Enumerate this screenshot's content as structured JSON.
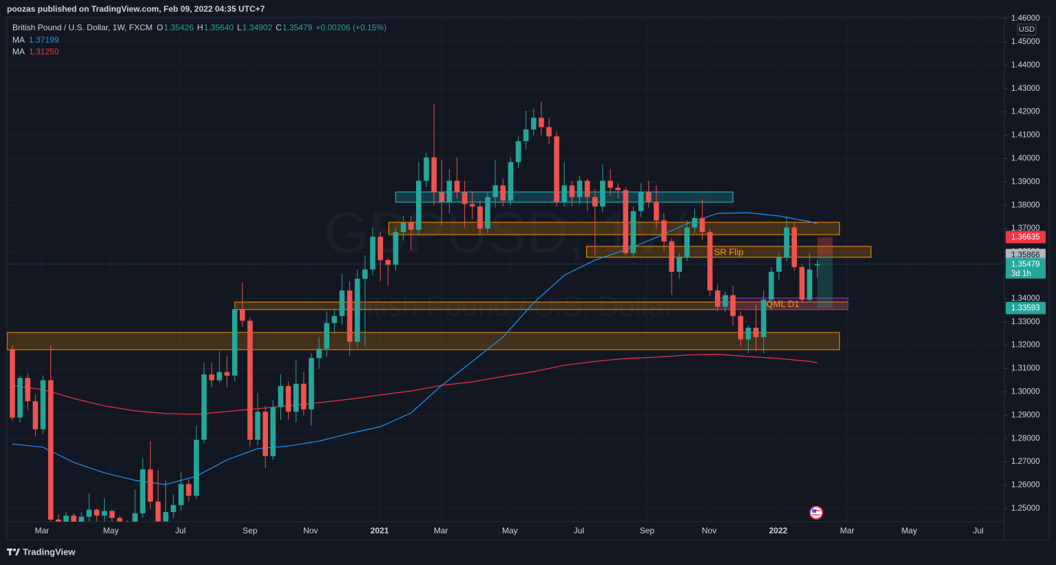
{
  "header": {
    "published": "poozas published on TradingView.com, Feb 09, 2022 04:35 UTC+7"
  },
  "chart_data": {
    "type": "candlestick",
    "symbol": "British Pound / U.S. Dollar, 1W, FXCM",
    "ohlc_legend": [
      {
        "key": "O",
        "value": "1.35426"
      },
      {
        "key": "H",
        "value": "1.35640"
      },
      {
        "key": "L",
        "value": "1.34902"
      },
      {
        "key": "C",
        "value": "1.35479"
      }
    ],
    "change": "+0.00206 (+0.15%)",
    "watermark": "GBPUSD, 1W",
    "watermark_sub": "British Pound / U.S. Dollar",
    "currency": "USD",
    "up_color": "#26a69a",
    "down_color": "#ef5350",
    "x": [
      0,
      1,
      2,
      3,
      4,
      5,
      6,
      7,
      8,
      9,
      10,
      11,
      12,
      13,
      14,
      15,
      16,
      17,
      18,
      19,
      20,
      21,
      22,
      23,
      24,
      25,
      26,
      27,
      28,
      29,
      30,
      31,
      32,
      33,
      34,
      35,
      36,
      37,
      38,
      39,
      40,
      41,
      42,
      43,
      44,
      45,
      46,
      47,
      48,
      49,
      50,
      51,
      52,
      53,
      54,
      55,
      56,
      57,
      58,
      59,
      60,
      61,
      62,
      63,
      64,
      65,
      66,
      67,
      68,
      69,
      70,
      71,
      72,
      73,
      74,
      75,
      76,
      77,
      78,
      79,
      80,
      81,
      82,
      83,
      84,
      85,
      86,
      87,
      88,
      89,
      90,
      91,
      92,
      93,
      94,
      95,
      96,
      97,
      98,
      99,
      100,
      101,
      102,
      103,
      104,
      105
    ],
    "open": [
      1.318,
      1.289,
      1.306,
      1.296,
      1.284,
      1.305,
      1.2453,
      1.24,
      1.247,
      1.243,
      1.2465,
      1.2495,
      1.247,
      1.249,
      1.246,
      1.238,
      1.244,
      1.248,
      1.2668,
      1.253,
      1.2445,
      1.2485,
      1.2515,
      1.2605,
      1.2555,
      1.2795,
      1.3075,
      1.305,
      1.3085,
      1.307,
      1.3355,
      1.3305,
      1.2795,
      1.2915,
      1.2725,
      1.2935,
      1.3025,
      1.2915,
      1.3035,
      1.2925,
      1.3145,
      1.3185,
      1.3295,
      1.3325,
      1.3435,
      1.3215,
      1.3485,
      1.3525,
      1.3665,
      1.3565,
      1.3545,
      1.3685,
      1.3725,
      1.3695,
      1.3905,
      1.4005,
      1.3855,
      1.3815,
      1.3905,
      1.3855,
      1.3805,
      1.3795,
      1.37,
      1.3835,
      1.3885,
      1.382,
      1.3985,
      1.4075,
      1.4125,
      1.4175,
      1.4135,
      1.4095,
      1.3815,
      1.3885,
      1.3835,
      1.3905,
      1.3835,
      1.3795,
      1.3905,
      1.3875,
      1.3865,
      1.3595,
      1.3775,
      1.3855,
      1.3815,
      1.3735,
      1.3645,
      1.3515,
      1.3575,
      1.3705,
      1.3745,
      1.3685,
      1.3435,
      1.3365,
      1.3415,
      1.3325,
      1.3225,
      1.3275,
      1.3235,
      1.3395,
      1.3515,
      1.3575,
      1.3705,
      1.3535,
      1.3395,
      1.35426
    ],
    "high": [
      1.32,
      1.307,
      1.308,
      1.299,
      1.307,
      1.32,
      1.2475,
      1.2485,
      1.248,
      1.2485,
      1.2565,
      1.25,
      1.2545,
      1.2495,
      1.247,
      1.245,
      1.258,
      1.2715,
      1.279,
      1.2665,
      1.262,
      1.256,
      1.2655,
      1.2625,
      1.2855,
      1.3125,
      1.3125,
      1.3175,
      1.3155,
      1.337,
      1.347,
      1.332,
      1.2995,
      1.294,
      1.2965,
      1.3075,
      1.3045,
      1.3135,
      1.3085,
      1.3165,
      1.3235,
      1.3345,
      1.3355,
      1.3505,
      1.3475,
      1.3525,
      1.3585,
      1.3705,
      1.3685,
      1.3575,
      1.3705,
      1.3755,
      1.3755,
      1.3985,
      1.4025,
      1.4235,
      1.3995,
      1.3955,
      1.4005,
      1.3905,
      1.3855,
      1.382,
      1.3855,
      1.3995,
      1.3915,
      1.4005,
      1.4095,
      1.4205,
      1.4215,
      1.4245,
      1.4175,
      1.4115,
      1.3985,
      1.3905,
      1.3925,
      1.3915,
      1.387,
      1.3975,
      1.3955,
      1.3895,
      1.3875,
      1.3795,
      1.3895,
      1.3905,
      1.3885,
      1.3765,
      1.366,
      1.3595,
      1.3735,
      1.3785,
      1.3825,
      1.3695,
      1.346,
      1.343,
      1.3455,
      1.3345,
      1.3285,
      1.3375,
      1.3435,
      1.3535,
      1.3595,
      1.3755,
      1.3725,
      1.3545,
      1.3595,
      1.3564
    ],
    "low": [
      1.288,
      1.287,
      1.292,
      1.281,
      1.282,
      1.24,
      1.238,
      1.238,
      1.241,
      1.24,
      1.244,
      1.244,
      1.244,
      1.243,
      1.236,
      1.235,
      1.242,
      1.246,
      1.25,
      1.242,
      1.242,
      1.246,
      1.249,
      1.253,
      1.254,
      1.278,
      1.302,
      1.304,
      1.302,
      1.3045,
      1.328,
      1.2765,
      1.277,
      1.2675,
      1.271,
      1.288,
      1.288,
      1.287,
      1.29,
      1.2855,
      1.31,
      1.315,
      1.325,
      1.329,
      1.3155,
      1.319,
      1.3195,
      1.35,
      1.3475,
      1.3455,
      1.352,
      1.365,
      1.3605,
      1.367,
      1.388,
      1.38,
      1.3715,
      1.3765,
      1.383,
      1.3705,
      1.374,
      1.3675,
      1.368,
      1.379,
      1.3795,
      1.38,
      1.396,
      1.404,
      1.41,
      1.41,
      1.406,
      1.3795,
      1.3795,
      1.3795,
      1.3805,
      1.3775,
      1.3585,
      1.377,
      1.384,
      1.383,
      1.3585,
      1.358,
      1.375,
      1.379,
      1.37,
      1.3605,
      1.3415,
      1.3485,
      1.356,
      1.368,
      1.365,
      1.341,
      1.3345,
      1.334,
      1.3285,
      1.3195,
      1.3165,
      1.3175,
      1.3165,
      1.337,
      1.348,
      1.356,
      1.352,
      1.3385,
      1.3385,
      1.34902
    ],
    "close": [
      1.289,
      1.306,
      1.296,
      1.284,
      1.305,
      1.2453,
      1.24,
      1.247,
      1.243,
      1.2465,
      1.2495,
      1.247,
      1.249,
      1.246,
      1.238,
      1.244,
      1.248,
      1.2668,
      1.253,
      1.2445,
      1.2485,
      1.2515,
      1.2605,
      1.2555,
      1.2795,
      1.3075,
      1.305,
      1.3085,
      1.307,
      1.3355,
      1.3305,
      1.2795,
      1.2915,
      1.2725,
      1.2935,
      1.3025,
      1.2915,
      1.3035,
      1.2925,
      1.3145,
      1.3185,
      1.3295,
      1.3325,
      1.3435,
      1.3215,
      1.3485,
      1.3525,
      1.3665,
      1.3565,
      1.3545,
      1.3685,
      1.3725,
      1.3695,
      1.3905,
      1.4005,
      1.3855,
      1.3815,
      1.3905,
      1.3855,
      1.3805,
      1.3795,
      1.37,
      1.3835,
      1.3885,
      1.382,
      1.3985,
      1.4075,
      1.4125,
      1.4175,
      1.4135,
      1.4095,
      1.3815,
      1.3885,
      1.3835,
      1.3905,
      1.3835,
      1.3795,
      1.3905,
      1.3875,
      1.3865,
      1.3595,
      1.3775,
      1.3855,
      1.3815,
      1.3735,
      1.3645,
      1.3515,
      1.3575,
      1.3705,
      1.3745,
      1.3685,
      1.3435,
      1.3365,
      1.3415,
      1.3325,
      1.3225,
      1.3275,
      1.3235,
      1.3395,
      1.3515,
      1.3575,
      1.3705,
      1.3535,
      1.3395,
      1.3525,
      1.35479
    ],
    "series": [
      {
        "name": "MA",
        "color": "#2196f3",
        "value_label": "1.37199",
        "x": [
          0,
          4,
          8,
          12,
          16,
          20,
          24,
          28,
          32,
          36,
          40,
          44,
          48,
          52,
          56,
          60,
          64,
          68,
          72,
          76,
          80,
          84,
          88,
          92,
          96,
          100,
          104,
          105
        ],
        "values": [
          1.2777,
          1.2763,
          1.2698,
          1.2653,
          1.2621,
          1.2603,
          1.2639,
          1.2709,
          1.2757,
          1.2768,
          1.2789,
          1.2822,
          1.2851,
          1.291,
          1.3028,
          1.3131,
          1.3235,
          1.3382,
          1.35,
          1.3565,
          1.3609,
          1.3662,
          1.3721,
          1.3765,
          1.3768,
          1.3754,
          1.373,
          1.372
        ]
      },
      {
        "name": "MA",
        "color": "#f23645",
        "value_label": "1.31250",
        "x": [
          0,
          4,
          8,
          12,
          16,
          20,
          24,
          28,
          32,
          36,
          40,
          44,
          48,
          52,
          56,
          60,
          64,
          68,
          72,
          76,
          80,
          84,
          88,
          92,
          96,
          100,
          104,
          105
        ],
        "values": [
          1.3028,
          1.301,
          1.2972,
          1.294,
          1.2919,
          1.2907,
          1.2904,
          1.2916,
          1.2928,
          1.294,
          1.2954,
          1.2969,
          1.2987,
          1.3004,
          1.3028,
          1.3043,
          1.3066,
          1.3087,
          1.3114,
          1.3131,
          1.3143,
          1.3149,
          1.3158,
          1.3161,
          1.3152,
          1.3143,
          1.3131,
          1.3125
        ]
      }
    ],
    "zones": [
      {
        "x": [
          50,
          94
        ],
        "y": [
          1.3813,
          1.3857
        ],
        "color": "#26c6da"
      },
      {
        "x": [
          49.1,
          107.9
        ],
        "y": [
          1.3674,
          1.3727
        ],
        "color": "#ff9800"
      },
      {
        "x": [
          74.9,
          112
        ],
        "y": [
          1.3577,
          1.3624
        ],
        "color": "#ff9800",
        "label": "SR Flip"
      },
      {
        "x": [
          29,
          109
        ],
        "y": [
          1.3353,
          1.3385
        ],
        "color": "#ff9800"
      },
      {
        "x": [
          -0.7,
          107.9
        ],
        "y": [
          1.3181,
          1.3255
        ],
        "color": "#ff9800"
      },
      {
        "x": [
          92,
          109
        ],
        "y": [
          1.3353,
          1.3403
        ],
        "color": "#9c27b0",
        "label": "QML D1"
      }
    ],
    "position": {
      "x": [
        105,
        107
      ],
      "target": 1.36635,
      "entry": 1.35866,
      "stop": 1.33593
    },
    "price_labels": [
      {
        "value": 1.36635,
        "color": "#f23645"
      },
      {
        "value": 1.35866,
        "color": "#b2b5be"
      },
      {
        "value": 1.35479,
        "color": "#26a69a",
        "note": "3d 1h"
      },
      {
        "value": 1.33593,
        "color": "#26a69a"
      }
    ],
    "xlim": [
      -0.72,
      129.4
    ],
    "ylim": [
      1.2444,
      1.4606
    ],
    "xticks": [
      {
        "value": 3.86,
        "label": "Mar"
      },
      {
        "value": 12.85,
        "label": "May"
      },
      {
        "value": 21.92,
        "label": "Jul"
      },
      {
        "value": 31.0,
        "label": "Sep"
      },
      {
        "value": 38.9,
        "label": "Nov"
      },
      {
        "value": 47.9,
        "label": "2021"
      },
      {
        "value": 55.9,
        "label": "Mar"
      },
      {
        "value": 64.9,
        "label": "May"
      },
      {
        "value": 73.9,
        "label": "Jul"
      },
      {
        "value": 82.8,
        "label": "Sep"
      },
      {
        "value": 90.9,
        "label": "Nov"
      },
      {
        "value": 99.9,
        "label": "2022"
      },
      {
        "value": 108.9,
        "label": "Mar"
      },
      {
        "value": 117.0,
        "label": "May"
      },
      {
        "value": 126.0,
        "label": "Jul"
      }
    ],
    "yticks": [
      {
        "value": 1.25,
        "label": "1.25000"
      },
      {
        "value": 1.26,
        "label": "1.26000"
      },
      {
        "value": 1.27,
        "label": "1.27000"
      },
      {
        "value": 1.28,
        "label": "1.28000"
      },
      {
        "value": 1.29,
        "label": "1.29000"
      },
      {
        "value": 1.3,
        "label": "1.30000"
      },
      {
        "value": 1.31,
        "label": "1.31000"
      },
      {
        "value": 1.32,
        "label": "1.32000"
      },
      {
        "value": 1.33,
        "label": "1.33000"
      },
      {
        "value": 1.34,
        "label": "1.34000"
      },
      {
        "value": 1.35,
        "label": "1.35000"
      },
      {
        "value": 1.36,
        "label": "1.36000"
      },
      {
        "value": 1.37,
        "label": "1.37000"
      },
      {
        "value": 1.38,
        "label": "1.38000"
      },
      {
        "value": 1.39,
        "label": "1.39000"
      },
      {
        "value": 1.4,
        "label": "1.40000"
      },
      {
        "value": 1.41,
        "label": "1.41000"
      },
      {
        "value": 1.42,
        "label": "1.42000"
      },
      {
        "value": 1.43,
        "label": "1.43000"
      },
      {
        "value": 1.44,
        "label": "1.44000"
      },
      {
        "value": 1.45,
        "label": "1.45000"
      },
      {
        "value": 1.46,
        "label": "1.46000"
      }
    ],
    "grid": true
  },
  "footer": {
    "brand": "TradingView"
  }
}
